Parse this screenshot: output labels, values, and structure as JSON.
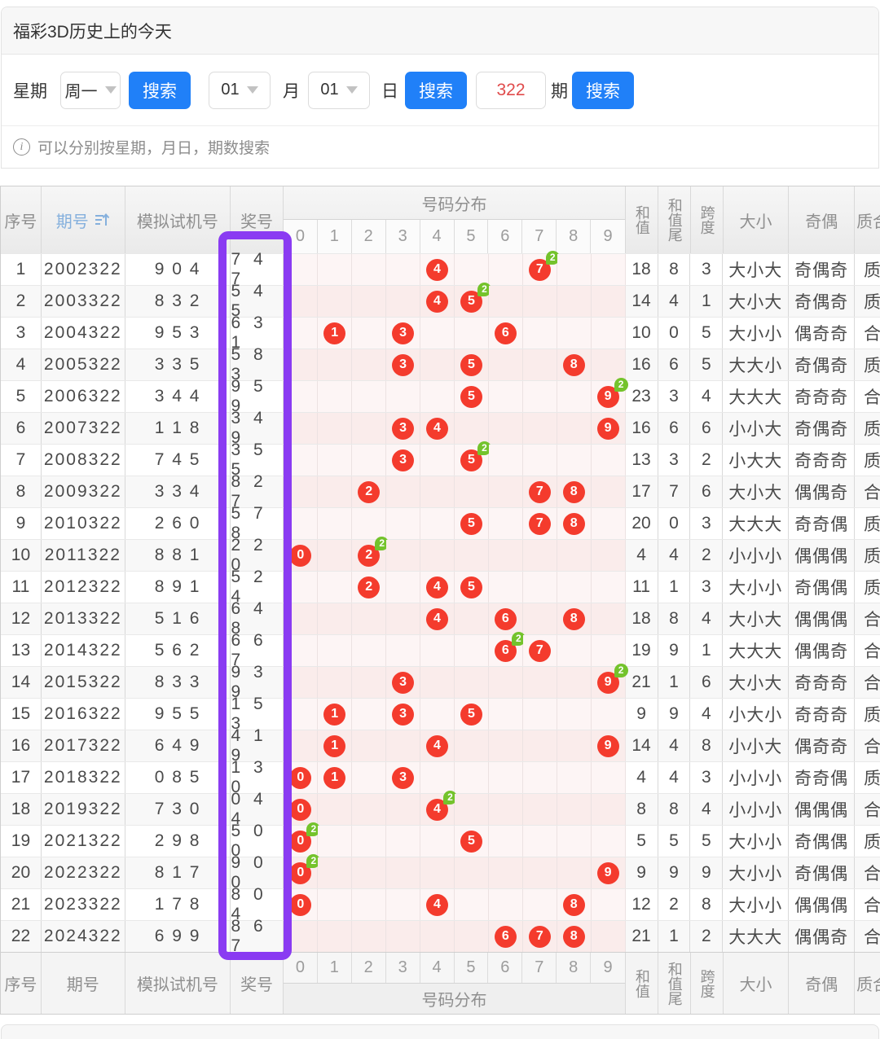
{
  "title": "福彩3D历史上的今天",
  "search": {
    "week_label": "星期",
    "week_value": "周一",
    "search_label": "搜索",
    "month_value": "01",
    "month_label": "月",
    "day_value": "01",
    "day_label": "日",
    "issue_value": "322",
    "issue_label": "期",
    "search_label2": "搜索",
    "search_label3": "搜索"
  },
  "info_text": "可以分别按星期，月日，期数搜索",
  "colors": {
    "accent_blue": "#2080f8",
    "red_text": "#dd5150",
    "ball_red": "#f43b2d",
    "badge_green": "#74c32c",
    "highlight_purple": "#8a3bf2",
    "link_blue": "#85b0dd"
  },
  "table": {
    "headers": {
      "seq": "序号",
      "issue": "期号",
      "test": "模拟试机号",
      "prize": "奖号",
      "dist": "号码分布",
      "sum": "和值",
      "sum_tail": "和值尾",
      "span": "跨度",
      "size": "大小",
      "parity": "奇偶",
      "prime": "质合"
    },
    "digits": [
      "0",
      "1",
      "2",
      "3",
      "4",
      "5",
      "6",
      "7",
      "8",
      "9"
    ],
    "badge_label": "2",
    "rows": [
      {
        "seq": "1",
        "issue": "2002322",
        "test": "9 0 4",
        "prize": "7 4 7",
        "balls": [
          {
            "d": 4
          },
          {
            "d": 7,
            "badge": "2"
          }
        ],
        "sum": "18",
        "sum_tail": "8",
        "span": "3",
        "size": "大小大",
        "parity": "奇偶奇",
        "prime": "质"
      },
      {
        "seq": "2",
        "issue": "2003322",
        "test": "8 3 2",
        "prize": "5 4 5",
        "balls": [
          {
            "d": 4
          },
          {
            "d": 5,
            "badge": "2"
          }
        ],
        "sum": "14",
        "sum_tail": "4",
        "span": "1",
        "size": "大小大",
        "parity": "奇偶奇",
        "prime": "质"
      },
      {
        "seq": "3",
        "issue": "2004322",
        "test": "9 5 3",
        "prize": "6 3 1",
        "balls": [
          {
            "d": 1
          },
          {
            "d": 3
          },
          {
            "d": 6
          }
        ],
        "sum": "10",
        "sum_tail": "0",
        "span": "5",
        "size": "大小小",
        "parity": "偶奇奇",
        "prime": "合"
      },
      {
        "seq": "4",
        "issue": "2005322",
        "test": "3 3 5",
        "prize": "5 8 3",
        "balls": [
          {
            "d": 3
          },
          {
            "d": 5
          },
          {
            "d": 8
          }
        ],
        "sum": "16",
        "sum_tail": "6",
        "span": "5",
        "size": "大大小",
        "parity": "奇偶奇",
        "prime": "质"
      },
      {
        "seq": "5",
        "issue": "2006322",
        "test": "3 4 4",
        "prize": "9 5 9",
        "balls": [
          {
            "d": 5
          },
          {
            "d": 9,
            "badge": "2"
          }
        ],
        "sum": "23",
        "sum_tail": "3",
        "span": "4",
        "size": "大大大",
        "parity": "奇奇奇",
        "prime": "合"
      },
      {
        "seq": "6",
        "issue": "2007322",
        "test": "1 1 8",
        "prize": "3 4 9",
        "balls": [
          {
            "d": 3
          },
          {
            "d": 4
          },
          {
            "d": 9
          }
        ],
        "sum": "16",
        "sum_tail": "6",
        "span": "6",
        "size": "小小大",
        "parity": "奇偶奇",
        "prime": "质"
      },
      {
        "seq": "7",
        "issue": "2008322",
        "test": "7 4 5",
        "prize": "3 5 5",
        "balls": [
          {
            "d": 3
          },
          {
            "d": 5,
            "badge": "2"
          }
        ],
        "sum": "13",
        "sum_tail": "3",
        "span": "2",
        "size": "小大大",
        "parity": "奇奇奇",
        "prime": "质"
      },
      {
        "seq": "8",
        "issue": "2009322",
        "test": "3 3 4",
        "prize": "8 2 7",
        "balls": [
          {
            "d": 2
          },
          {
            "d": 7
          },
          {
            "d": 8
          }
        ],
        "sum": "17",
        "sum_tail": "7",
        "span": "6",
        "size": "大小大",
        "parity": "偶偶奇",
        "prime": "合"
      },
      {
        "seq": "9",
        "issue": "2010322",
        "test": "2 6 0",
        "prize": "5 7 8",
        "balls": [
          {
            "d": 5
          },
          {
            "d": 7
          },
          {
            "d": 8
          }
        ],
        "sum": "20",
        "sum_tail": "0",
        "span": "3",
        "size": "大大大",
        "parity": "奇奇偶",
        "prime": "质"
      },
      {
        "seq": "10",
        "issue": "2011322",
        "test": "8 8 1",
        "prize": "2 2 0",
        "balls": [
          {
            "d": 0
          },
          {
            "d": 2,
            "badge": "2"
          }
        ],
        "sum": "4",
        "sum_tail": "4",
        "span": "2",
        "size": "小小小",
        "parity": "偶偶偶",
        "prime": "质"
      },
      {
        "seq": "11",
        "issue": "2012322",
        "test": "8 9 1",
        "prize": "5 2 4",
        "balls": [
          {
            "d": 2
          },
          {
            "d": 4
          },
          {
            "d": 5
          }
        ],
        "sum": "11",
        "sum_tail": "1",
        "span": "3",
        "size": "大小小",
        "parity": "奇偶偶",
        "prime": "质"
      },
      {
        "seq": "12",
        "issue": "2013322",
        "test": "5 1 6",
        "prize": "6 4 8",
        "balls": [
          {
            "d": 4
          },
          {
            "d": 6
          },
          {
            "d": 8
          }
        ],
        "sum": "18",
        "sum_tail": "8",
        "span": "4",
        "size": "大小大",
        "parity": "偶偶偶",
        "prime": "合"
      },
      {
        "seq": "13",
        "issue": "2014322",
        "test": "5 6 2",
        "prize": "6 6 7",
        "balls": [
          {
            "d": 6,
            "badge": "2"
          },
          {
            "d": 7
          }
        ],
        "sum": "19",
        "sum_tail": "9",
        "span": "1",
        "size": "大大大",
        "parity": "偶偶奇",
        "prime": "合"
      },
      {
        "seq": "14",
        "issue": "2015322",
        "test": "8 3 3",
        "prize": "9 3 9",
        "balls": [
          {
            "d": 3
          },
          {
            "d": 9,
            "badge": "2"
          }
        ],
        "sum": "21",
        "sum_tail": "1",
        "span": "6",
        "size": "大小大",
        "parity": "奇奇奇",
        "prime": "合"
      },
      {
        "seq": "15",
        "issue": "2016322",
        "test": "9 5 5",
        "prize": "1 5 3",
        "balls": [
          {
            "d": 1
          },
          {
            "d": 3
          },
          {
            "d": 5
          }
        ],
        "sum": "9",
        "sum_tail": "9",
        "span": "4",
        "size": "小大小",
        "parity": "奇奇奇",
        "prime": "质"
      },
      {
        "seq": "16",
        "issue": "2017322",
        "test": "6 4 9",
        "prize": "4 1 9",
        "balls": [
          {
            "d": 1
          },
          {
            "d": 4
          },
          {
            "d": 9
          }
        ],
        "sum": "14",
        "sum_tail": "4",
        "span": "8",
        "size": "小小大",
        "parity": "偶奇奇",
        "prime": "合"
      },
      {
        "seq": "17",
        "issue": "2018322",
        "test": "0 8 5",
        "prize": "1 3 0",
        "balls": [
          {
            "d": 0
          },
          {
            "d": 1
          },
          {
            "d": 3
          }
        ],
        "sum": "4",
        "sum_tail": "4",
        "span": "3",
        "size": "小小小",
        "parity": "奇奇偶",
        "prime": "质"
      },
      {
        "seq": "18",
        "issue": "2019322",
        "test": "7 3 0",
        "prize": "0 4 4",
        "balls": [
          {
            "d": 0
          },
          {
            "d": 4,
            "badge": "2"
          }
        ],
        "sum": "8",
        "sum_tail": "8",
        "span": "4",
        "size": "小小小",
        "parity": "偶偶偶",
        "prime": "合"
      },
      {
        "seq": "19",
        "issue": "2021322",
        "test": "2 9 8",
        "prize": "5 0 0",
        "balls": [
          {
            "d": 0,
            "badge": "2"
          },
          {
            "d": 5
          }
        ],
        "sum": "5",
        "sum_tail": "5",
        "span": "5",
        "size": "大小小",
        "parity": "奇偶偶",
        "prime": "质"
      },
      {
        "seq": "20",
        "issue": "2022322",
        "test": "8 1 7",
        "prize": "9 0 0",
        "balls": [
          {
            "d": 0,
            "badge": "2"
          },
          {
            "d": 9
          }
        ],
        "sum": "9",
        "sum_tail": "9",
        "span": "9",
        "size": "大小小",
        "parity": "奇偶偶",
        "prime": "合"
      },
      {
        "seq": "21",
        "issue": "2023322",
        "test": "1 7 8",
        "prize": "8 0 4",
        "balls": [
          {
            "d": 0
          },
          {
            "d": 4
          },
          {
            "d": 8
          }
        ],
        "sum": "12",
        "sum_tail": "2",
        "span": "8",
        "size": "大小小",
        "parity": "偶偶偶",
        "prime": "合"
      },
      {
        "seq": "22",
        "issue": "2024322",
        "test": "6 9 9",
        "prize": "8 6 7",
        "balls": [
          {
            "d": 6
          },
          {
            "d": 7
          },
          {
            "d": 8
          }
        ],
        "sum": "21",
        "sum_tail": "1",
        "span": "2",
        "size": "大大大",
        "parity": "偶偶奇",
        "prime": "合"
      }
    ]
  }
}
